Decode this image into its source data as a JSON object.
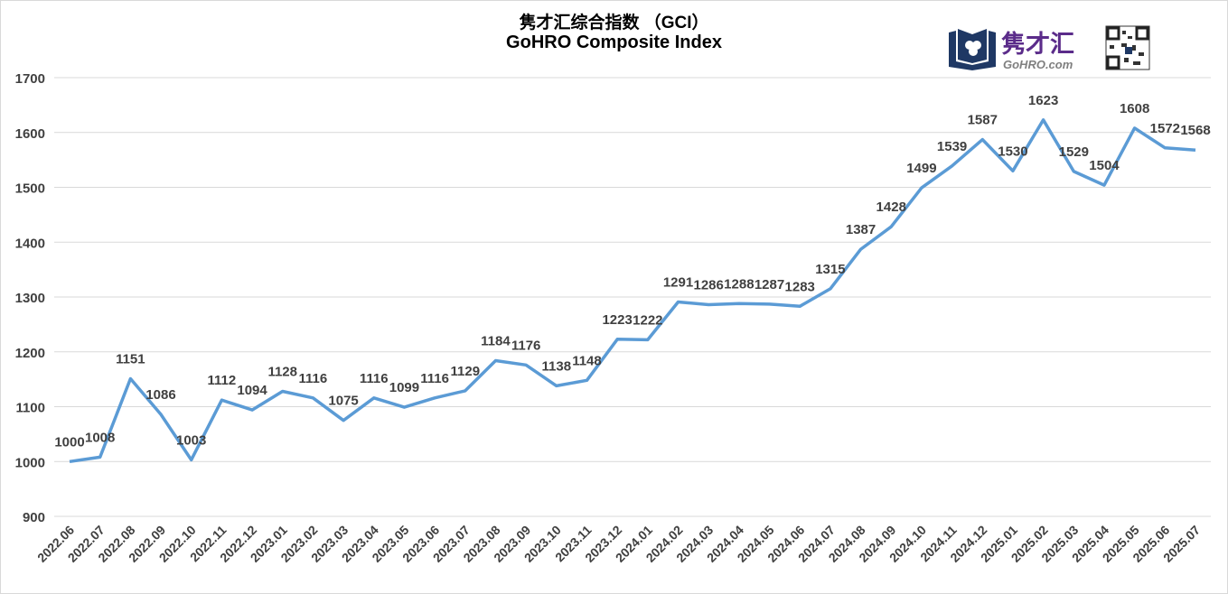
{
  "title_cn": "隽才汇综合指数 （GCI）",
  "title_en": "GoHRO Composite Index",
  "logo": {
    "brand_cn": "隽才汇",
    "brand_en": "GoHRO.com"
  },
  "colors": {
    "line": "#5b9bd5",
    "text": "#404040",
    "grid": "#d9d9d9",
    "brand": "#5b2c8a",
    "logo_book": "#1f3864"
  },
  "chart_data": {
    "type": "line",
    "title": "隽才汇综合指数 （GCI） / GoHRO Composite Index",
    "xlabel": "",
    "ylabel": "",
    "ylim": [
      900,
      1700
    ],
    "yticks": [
      900,
      1000,
      1100,
      1200,
      1300,
      1400,
      1500,
      1600,
      1700
    ],
    "grid": true,
    "categories": [
      "2022.06",
      "2022.07",
      "2022.08",
      "2022.09",
      "2022.10",
      "2022.11",
      "2022.12",
      "2023.01",
      "2023.02",
      "2023.03",
      "2023.04",
      "2023.05",
      "2023.06",
      "2023.07",
      "2023.08",
      "2023.09",
      "2023.10",
      "2023.11",
      "2023.12",
      "2024.01",
      "2024.02",
      "2024.03",
      "2024.04",
      "2024.05",
      "2024.06",
      "2024.07",
      "2024.08",
      "2024.09",
      "2024.10",
      "2024.11",
      "2024.12",
      "2025.01",
      "2025.02",
      "2025.03",
      "2025.04",
      "2025.05",
      "2025.06",
      "2025.07"
    ],
    "values": [
      1000,
      1008,
      1151,
      1086,
      1003,
      1112,
      1094,
      1128,
      1116,
      1075,
      1116,
      1099,
      1116,
      1129,
      1184,
      1176,
      1138,
      1148,
      1223,
      1222,
      1291,
      1286,
      1288,
      1287,
      1283,
      1315,
      1387,
      1428,
      1499,
      1539,
      1587,
      1530,
      1623,
      1529,
      1504,
      1608,
      1572,
      1568
    ]
  }
}
